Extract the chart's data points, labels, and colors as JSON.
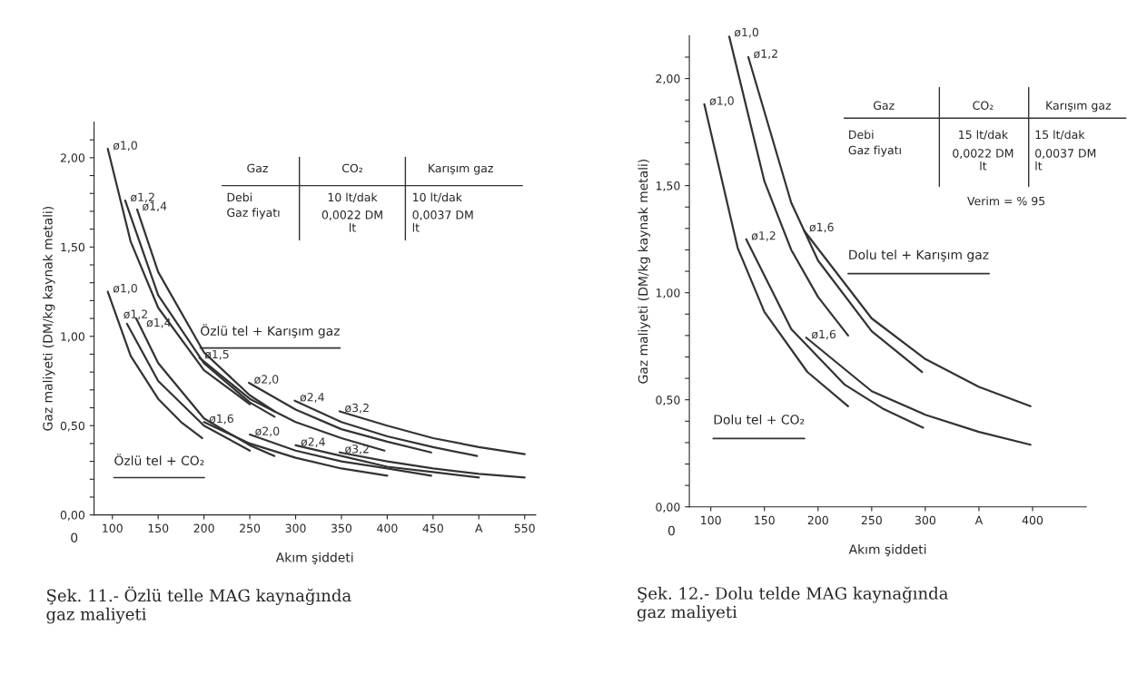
{
  "chart_data": [
    {
      "type": "line",
      "title": "Şek. 11.- Özlü telle MAG kaynağında\ngaz maliyeti",
      "xlabel": "Akım şiddeti",
      "ylabel": "Gaz maliyeti (DM/kg kaynak metali)",
      "xlim": [
        80,
        562
      ],
      "xticks": [
        100,
        150,
        200,
        250,
        300,
        350,
        400,
        450,
        {
          "value": 500,
          "label": "A"
        },
        550
      ],
      "ylim": [
        0,
        2.2
      ],
      "yticks": [
        {
          "value": 0,
          "label": "0,00"
        },
        {
          "value": 0.1,
          "label": null
        },
        {
          "value": 0.2,
          "label": null
        },
        {
          "value": 0.3,
          "label": null
        },
        {
          "value": 0.4,
          "label": null
        },
        {
          "value": 0.5,
          "label": "0,50"
        },
        {
          "value": 0.6,
          "label": null
        },
        {
          "value": 0.7,
          "label": null
        },
        {
          "value": 0.8,
          "label": null
        },
        {
          "value": 0.9,
          "label": null
        },
        {
          "value": 1.0,
          "label": "1,00"
        },
        {
          "value": 1.1,
          "label": null
        },
        {
          "value": 1.2,
          "label": null
        },
        {
          "value": 1.3,
          "label": null
        },
        {
          "value": 1.4,
          "label": null
        },
        {
          "value": 1.5,
          "label": "1,50"
        },
        {
          "value": 1.6,
          "label": null
        },
        {
          "value": 1.7,
          "label": null
        },
        {
          "value": 1.8,
          "label": null
        },
        {
          "value": 1.9,
          "label": null
        },
        {
          "value": 2.0,
          "label": "2,00"
        },
        {
          "value": 2.1,
          "label": null
        }
      ],
      "grid": false,
      "legend": false,
      "line_style": "solid",
      "marker": "none",
      "annotations": [
        "Özlü tel + Karışım gaz",
        "Özlü tel + CO₂",
        "0",
        "Gaz",
        "CO₂",
        "Karışım gaz",
        "Debi",
        "10 lt/dak",
        "10 lt/dak",
        "Gaz fiyatı",
        "0,0022 DM\nlt",
        "0,0037 DM\nlt"
      ],
      "series": [
        {
          "name": "ø1,0",
          "color": "#333333",
          "x": [
            95,
            120,
            150,
            200,
            250
          ],
          "values": [
            2.05,
            1.53,
            1.16,
            0.81,
            0.62
          ]
        },
        {
          "name": "ø1,2",
          "color": "#333333",
          "x": [
            114,
            150,
            200,
            250,
            277
          ],
          "values": [
            1.76,
            1.23,
            0.85,
            0.63,
            0.55
          ]
        },
        {
          "name": "ø1,4",
          "color": "#333333",
          "x": [
            127,
            150,
            200,
            250,
            277
          ],
          "values": [
            1.71,
            1.36,
            0.91,
            0.67,
            0.58
          ]
        },
        {
          "name": "ø1,5",
          "color": "#333333",
          "x": [
            195,
            250,
            300,
            350,
            397
          ],
          "values": [
            0.88,
            0.65,
            0.52,
            0.43,
            0.36
          ]
        },
        {
          "name": "ø2,0",
          "color": "#333333",
          "x": [
            249,
            300,
            350,
            400,
            448
          ],
          "values": [
            0.74,
            0.59,
            0.48,
            0.41,
            0.35
          ]
        },
        {
          "name": "ø2,4",
          "color": "#333333",
          "x": [
            299,
            350,
            400,
            450,
            498
          ],
          "values": [
            0.64,
            0.52,
            0.44,
            0.38,
            0.33
          ]
        },
        {
          "name": "ø3,2",
          "color": "#333333",
          "x": [
            348,
            400,
            450,
            500,
            550
          ],
          "values": [
            0.58,
            0.5,
            0.43,
            0.38,
            0.34
          ]
        },
        {
          "name": "ø1,0",
          "color": "#333333",
          "x": [
            95,
            120,
            150,
            175,
            198
          ],
          "values": [
            1.25,
            0.89,
            0.65,
            0.52,
            0.43
          ]
        },
        {
          "name": "ø1,2",
          "color": "#333333",
          "x": [
            116,
            150,
            200,
            250
          ],
          "values": [
            1.07,
            0.75,
            0.5,
            0.36
          ]
        },
        {
          "name": "ø1,4",
          "color": "#333333",
          "x": [
            126,
            150,
            200,
            250,
            277
          ],
          "values": [
            1.1,
            0.85,
            0.54,
            0.39,
            0.33
          ]
        },
        {
          "name": "ø1,6",
          "color": "#333333",
          "x": [
            200,
            250,
            300,
            350,
            400
          ],
          "values": [
            0.52,
            0.4,
            0.32,
            0.26,
            0.22
          ]
        },
        {
          "name": "ø2,0",
          "color": "#333333",
          "x": [
            250,
            300,
            350,
            400,
            448
          ],
          "values": [
            0.45,
            0.36,
            0.3,
            0.26,
            0.22
          ]
        },
        {
          "name": "ø2,4",
          "color": "#333333",
          "x": [
            300,
            350,
            400,
            450,
            500
          ],
          "values": [
            0.39,
            0.33,
            0.27,
            0.24,
            0.21
          ]
        },
        {
          "name": "ø3,2",
          "color": "#333333",
          "x": [
            348,
            400,
            450,
            500,
            550
          ],
          "values": [
            0.35,
            0.3,
            0.26,
            0.23,
            0.21
          ]
        }
      ]
    },
    {
      "type": "line",
      "title": "Şek. 12.- Dolu telde MAG kaynağında\ngaz maliyeti",
      "xlabel": "Akım şiddeti",
      "ylabel": "Gaz maliyeti (DM/kg kaynak metali)",
      "xlim": [
        80,
        450
      ],
      "xticks": [
        100,
        150,
        200,
        250,
        300,
        {
          "value": 350,
          "label": "A"
        },
        400
      ],
      "ylim": [
        0,
        2.2
      ],
      "yticks": [
        {
          "value": 0,
          "label": "0,00"
        },
        {
          "value": 0.1,
          "label": null
        },
        {
          "value": 0.2,
          "label": null
        },
        {
          "value": 0.3,
          "label": null
        },
        {
          "value": 0.4,
          "label": null
        },
        {
          "value": 0.5,
          "label": "0,50"
        },
        {
          "value": 0.6,
          "label": null
        },
        {
          "value": 0.7,
          "label": null
        },
        {
          "value": 0.8,
          "label": null
        },
        {
          "value": 0.9,
          "label": null
        },
        {
          "value": 1.0,
          "label": "1,00"
        },
        {
          "value": 1.1,
          "label": null
        },
        {
          "value": 1.2,
          "label": null
        },
        {
          "value": 1.3,
          "label": null
        },
        {
          "value": 1.4,
          "label": null
        },
        {
          "value": 1.5,
          "label": "1,50"
        },
        {
          "value": 1.6,
          "label": null
        },
        {
          "value": 1.7,
          "label": null
        },
        {
          "value": 1.8,
          "label": null
        },
        {
          "value": 1.9,
          "label": null
        },
        {
          "value": 2.0,
          "label": "2,00"
        },
        {
          "value": 2.1,
          "label": null
        }
      ],
      "grid": false,
      "legend": false,
      "line_style": "solid",
      "marker": "none",
      "annotations": [
        "Dolu tel + Karışım gaz",
        "Dolu tel + CO₂",
        "0",
        "Gaz",
        "CO₂",
        "Karışım gaz",
        "Debi",
        "15 lt/dak",
        "15 lt/dak",
        "Gaz fiyatı",
        "0,0022 DM\nlt",
        "0,0037 DM\nlt",
        "Verim = % 95"
      ],
      "series": [
        {
          "name": "ø1,0",
          "color": "#333333",
          "x": [
            117,
            150,
            175,
            200,
            228
          ],
          "values": [
            2.2,
            1.52,
            1.2,
            0.98,
            0.8
          ]
        },
        {
          "name": "ø1,2",
          "color": "#333333",
          "x": [
            135,
            175,
            200,
            250,
            297
          ],
          "values": [
            2.1,
            1.42,
            1.15,
            0.82,
            0.63
          ]
        },
        {
          "name": "ø1,6",
          "color": "#333333",
          "x": [
            187,
            250,
            300,
            350,
            398
          ],
          "values": [
            1.29,
            0.88,
            0.69,
            0.56,
            0.47
          ]
        },
        {
          "name": "ø1,0",
          "color": "#333333",
          "x": [
            94,
            125,
            150,
            190,
            228
          ],
          "values": [
            1.88,
            1.21,
            0.91,
            0.63,
            0.47
          ]
        },
        {
          "name": "ø1,2",
          "color": "#333333",
          "x": [
            133,
            175,
            225,
            260,
            298
          ],
          "values": [
            1.25,
            0.83,
            0.57,
            0.46,
            0.37
          ]
        },
        {
          "name": "ø1,6",
          "color": "#333333",
          "x": [
            189,
            250,
            300,
            350,
            398
          ],
          "values": [
            0.79,
            0.54,
            0.43,
            0.35,
            0.29
          ]
        }
      ]
    }
  ]
}
